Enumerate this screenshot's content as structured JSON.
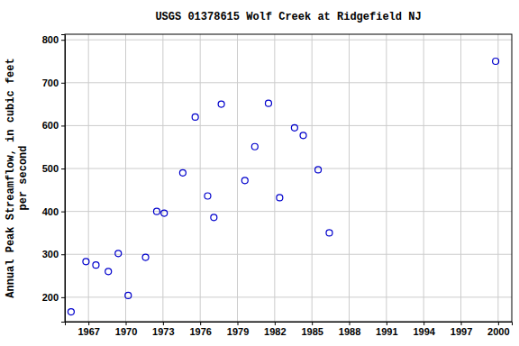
{
  "chart_data": {
    "type": "scatter",
    "title": "USGS 01378615 Wolf Creek at Ridgefield NJ",
    "ylabel": [
      "Annual Peak Streamflow, in cubic feet",
      "per second"
    ],
    "x": [
      1965.6,
      1966.8,
      1967.6,
      1968.6,
      1969.4,
      1970.2,
      1971.6,
      1972.5,
      1973.1,
      1974.6,
      1975.6,
      1976.6,
      1977.1,
      1977.7,
      1979.6,
      1980.4,
      1981.5,
      1982.4,
      1983.6,
      1984.3,
      1985.5,
      1986.4,
      1999.8
    ],
    "values": [
      166,
      283,
      275,
      260,
      302,
      204,
      293,
      400,
      396,
      490,
      620,
      436,
      386,
      650,
      472,
      551,
      652,
      432,
      595,
      577,
      497,
      350,
      750
    ],
    "color": "#0000cc",
    "marker": "circle",
    "xlim": [
      1965.1,
      2001.1
    ],
    "ylim": [
      143,
      813
    ],
    "xticks": [
      1967,
      1970,
      1973,
      1976,
      1979,
      1982,
      1985,
      1988,
      1991,
      1994,
      1997,
      2000
    ],
    "yticks": [
      200,
      300,
      400,
      500,
      600,
      700,
      800
    ],
    "grid": true
  }
}
